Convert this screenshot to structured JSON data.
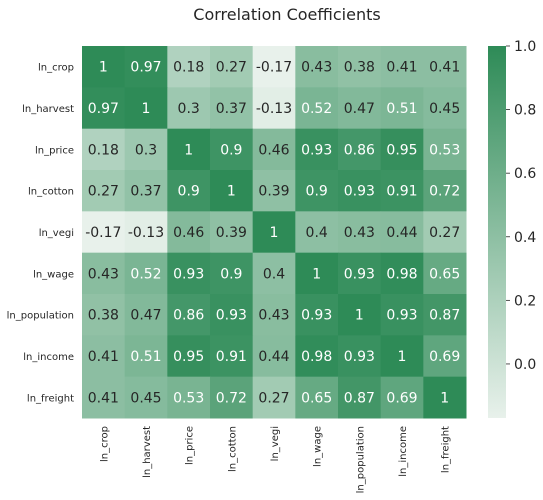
{
  "chart_data": {
    "type": "heatmap",
    "title": "Correlation Coefficients",
    "row_labels": [
      "ln_crop",
      "ln_harvest",
      "ln_price",
      "ln_cotton",
      "ln_vegi",
      "ln_wage",
      "ln_population",
      "ln_income",
      "ln_freight"
    ],
    "col_labels": [
      "ln_crop",
      "ln_harvest",
      "ln_price",
      "ln_cotton",
      "ln_vegi",
      "ln_wage",
      "ln_population",
      "ln_income",
      "ln_freight"
    ],
    "values": [
      [
        1,
        0.97,
        0.18,
        0.27,
        -0.17,
        0.43,
        0.38,
        0.41,
        0.41
      ],
      [
        0.97,
        1,
        0.3,
        0.37,
        -0.13,
        0.52,
        0.47,
        0.51,
        0.45
      ],
      [
        0.18,
        0.3,
        1,
        0.9,
        0.46,
        0.93,
        0.86,
        0.95,
        0.53
      ],
      [
        0.27,
        0.37,
        0.9,
        1,
        0.39,
        0.9,
        0.93,
        0.91,
        0.72
      ],
      [
        -0.17,
        -0.13,
        0.46,
        0.39,
        1,
        0.4,
        0.43,
        0.44,
        0.27
      ],
      [
        0.43,
        0.52,
        0.93,
        0.9,
        0.4,
        1,
        0.93,
        0.98,
        0.65
      ],
      [
        0.38,
        0.47,
        0.86,
        0.93,
        0.43,
        0.93,
        1,
        0.93,
        0.87
      ],
      [
        0.41,
        0.51,
        0.95,
        0.91,
        0.44,
        0.98,
        0.93,
        1,
        0.69
      ],
      [
        0.41,
        0.45,
        0.53,
        0.72,
        0.27,
        0.65,
        0.87,
        0.69,
        1
      ]
    ],
    "color_range": [
      -0.17,
      1
    ],
    "colors": {
      "low": "#e8f1eb",
      "high": "#2e8b57"
    },
    "colorbar_ticks": [
      {
        "value": 0.0,
        "label": "0.0"
      },
      {
        "value": 0.2,
        "label": "0.2"
      },
      {
        "value": 0.4,
        "label": "0.4"
      },
      {
        "value": 0.6,
        "label": "0.6"
      },
      {
        "value": 0.8,
        "label": "0.8"
      },
      {
        "value": 1.0,
        "label": "1.0"
      }
    ],
    "annotated": true,
    "legend": "colorbar-right"
  }
}
